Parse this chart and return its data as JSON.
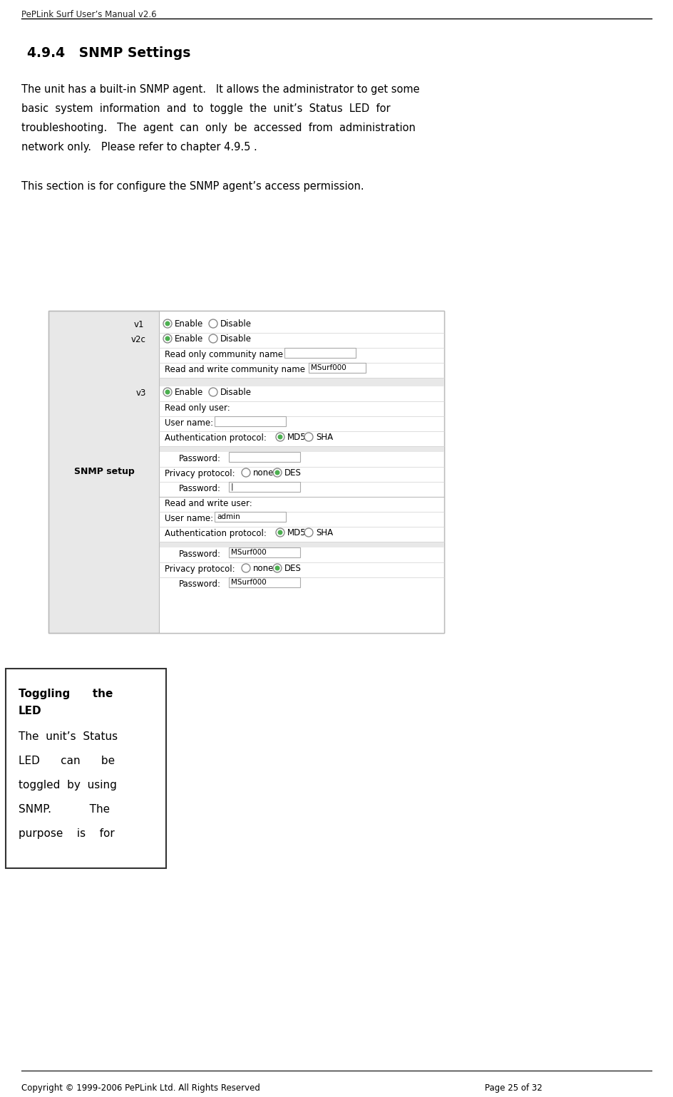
{
  "header_text": "PePLink Surf User’s Manual v2.6",
  "footer_left": "Copyright © 1999-2006 PePLink Ltd. All Rights Reserved",
  "footer_right": "Page 25 of 32",
  "section_title": "4.9.4   SNMP Settings",
  "body_para1": [
    "The unit has a built-in SNMP agent.   It allows the administrator to get some",
    "basic  system  information  and  to  toggle  the  unit’s  Status  LED  for",
    "troubleshooting.   The  agent  can  only  be  accessed  from  administration",
    "network only.   Please refer to chapter 4.9.5 ."
  ],
  "body_para2": "This section is for configure the SNMP agent’s access permission.",
  "snmp_label": "SNMP setup",
  "sidebar_title1": "Toggling      the",
  "sidebar_title2": "LED",
  "sidebar_body": [
    "The  unit’s  Status",
    "LED      can      be",
    "toggled  by  using",
    "SNMP.           The",
    "purpose    is    for"
  ],
  "bg_color": "#ffffff",
  "text_color": "#000000",
  "gray_color": "#666666",
  "border_color": "#aaaaaa",
  "form_bg": "#eeeeee",
  "green_color": "#4caf50",
  "input_border": "#999999"
}
